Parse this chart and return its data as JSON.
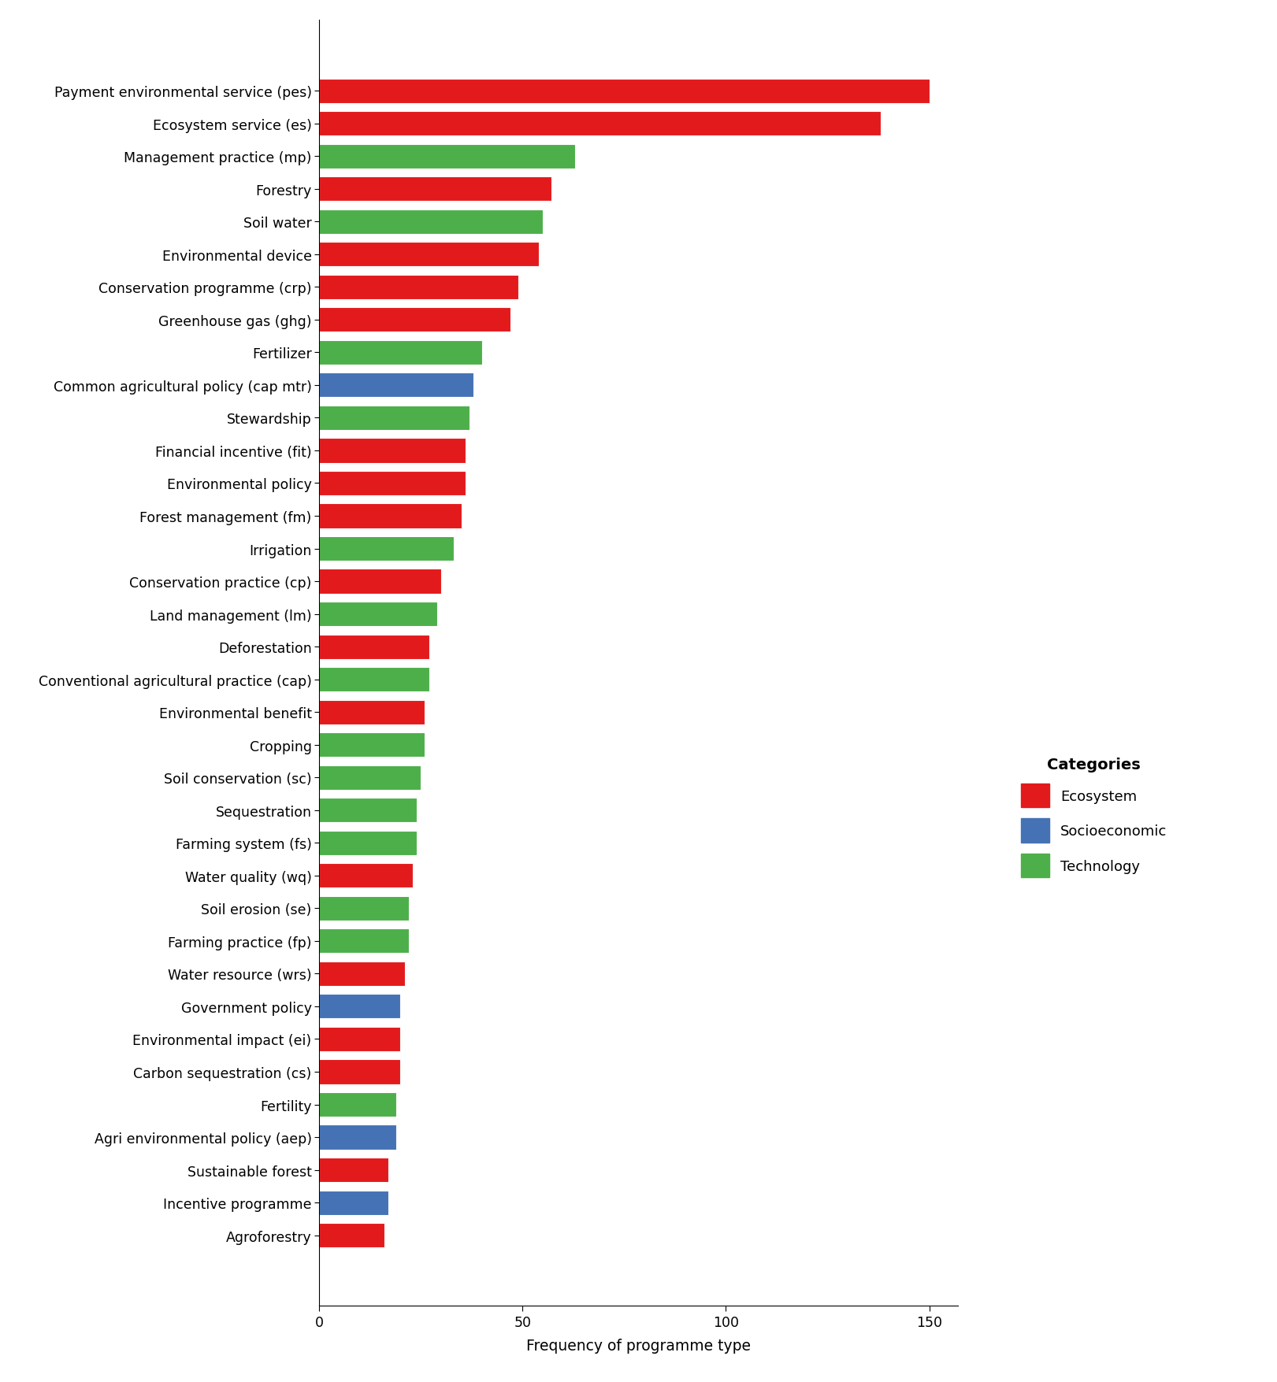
{
  "categories": [
    "Payment environmental service (pes)",
    "Ecosystem service (es)",
    "Management practice (mp)",
    "Forestry",
    "Soil water",
    "Environmental device",
    "Conservation programme (crp)",
    "Greenhouse gas (ghg)",
    "Fertilizer",
    "Common agricultural policy (cap mtr)",
    "Stewardship",
    "Financial incentive (fit)",
    "Environmental policy",
    "Forest management (fm)",
    "Irrigation",
    "Conservation practice (cp)",
    "Land management (lm)",
    "Deforestation",
    "Conventional agricultural practice (cap)",
    "Environmental benefit",
    "Cropping",
    "Soil conservation (sc)",
    "Sequestration",
    "Farming system (fs)",
    "Water quality (wq)",
    "Soil erosion (se)",
    "Farming practice (fp)",
    "Water resource (wrs)",
    "Government policy",
    "Environmental impact (ei)",
    "Carbon sequestration (cs)",
    "Fertility",
    "Agri environmental policy (aep)",
    "Sustainable forest",
    "Incentive programme",
    "Agroforestry"
  ],
  "values": [
    150,
    138,
    63,
    57,
    55,
    54,
    49,
    47,
    40,
    38,
    37,
    36,
    36,
    35,
    33,
    30,
    29,
    27,
    27,
    26,
    26,
    25,
    24,
    24,
    23,
    22,
    22,
    21,
    20,
    20,
    20,
    19,
    19,
    17,
    17,
    16
  ],
  "colors": [
    "#e31a1c",
    "#e31a1c",
    "#4daf4a",
    "#e31a1c",
    "#4daf4a",
    "#e31a1c",
    "#e31a1c",
    "#e31a1c",
    "#4daf4a",
    "#4572b4",
    "#4daf4a",
    "#e31a1c",
    "#e31a1c",
    "#e31a1c",
    "#4daf4a",
    "#e31a1c",
    "#4daf4a",
    "#e31a1c",
    "#4daf4a",
    "#e31a1c",
    "#4daf4a",
    "#4daf4a",
    "#4daf4a",
    "#4daf4a",
    "#e31a1c",
    "#4daf4a",
    "#4daf4a",
    "#e31a1c",
    "#4572b4",
    "#e31a1c",
    "#e31a1c",
    "#4daf4a",
    "#4572b4",
    "#e31a1c",
    "#4572b4",
    "#e31a1c"
  ],
  "xlabel": "Frequency of programme type",
  "legend_title": "Categories",
  "legend_labels": [
    "Ecosystem",
    "Socioeconomic",
    "Technology"
  ],
  "legend_colors": [
    "#e31a1c",
    "#4572b4",
    "#4daf4a"
  ],
  "background_color": "#ffffff",
  "xlim": [
    0,
    157
  ]
}
